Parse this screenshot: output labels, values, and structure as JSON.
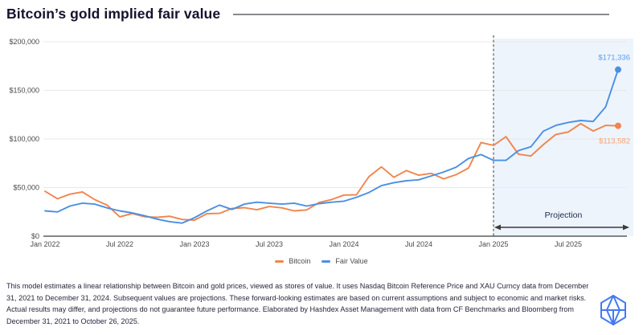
{
  "header": {
    "title": "Bitcoin’s gold implied fair value"
  },
  "chart_data": {
    "type": "line",
    "title": "Bitcoin’s gold implied fair value",
    "ylabel": "",
    "xlabel": "",
    "ylim": [
      0,
      200000
    ],
    "grid": "horizontal",
    "legend_position": "bottom-center",
    "x": [
      "Dec 2021",
      "Jan 2022",
      "Feb 2022",
      "Mar 2022",
      "Apr 2022",
      "May 2022",
      "Jun 2022",
      "Jul 2022",
      "Aug 2022",
      "Sep 2022",
      "Oct 2022",
      "Nov 2022",
      "Dec 2022",
      "Jan 2023",
      "Feb 2023",
      "Mar 2023",
      "Apr 2023",
      "May 2023",
      "Jun 2023",
      "Jul 2023",
      "Aug 2023",
      "Sep 2023",
      "Oct 2023",
      "Nov 2023",
      "Dec 2023",
      "Jan 2024",
      "Feb 2024",
      "Mar 2024",
      "Apr 2024",
      "May 2024",
      "Jun 2024",
      "Jul 2024",
      "Aug 2024",
      "Sep 2024",
      "Oct 2024",
      "Nov 2024",
      "Dec 2024",
      "Jan 2025",
      "Feb 2025",
      "Mar 2025",
      "Apr 2025",
      "May 2025",
      "Jun 2025",
      "Jul 2025",
      "Aug 2025",
      "Sep 2025",
      "Oct 26 2025"
    ],
    "series": [
      {
        "name": "Bitcoin",
        "color": "#f0854d",
        "label_color": "#f7a373",
        "end_label": "$113,582",
        "label_offset_y": 22,
        "values": [
          46200,
          38500,
          43200,
          45500,
          37600,
          31800,
          19900,
          23300,
          20000,
          19400,
          20500,
          17200,
          16500,
          23100,
          23500,
          28500,
          29300,
          27200,
          30500,
          29200,
          26000,
          27000,
          34600,
          37700,
          42300,
          42600,
          61200,
          71300,
          60600,
          67500,
          62700,
          64600,
          59000,
          63300,
          70200,
          96400,
          93400,
          102400,
          84400,
          82500,
          94200,
          104600,
          107200,
          115800,
          108200,
          114000,
          113582
        ]
      },
      {
        "name": "Fair Value",
        "color": "#4a90e2",
        "label_color": "#5c9df1",
        "end_label": "$171,336",
        "label_offset_y": -12,
        "values": [
          26000,
          25000,
          31000,
          34000,
          33000,
          29000,
          26000,
          24000,
          21000,
          17500,
          15000,
          13500,
          19000,
          26000,
          32000,
          27500,
          33000,
          35000,
          34000,
          33000,
          34000,
          31000,
          33500,
          35000,
          36000,
          40000,
          45000,
          52000,
          55000,
          57000,
          58000,
          62000,
          66000,
          71000,
          80000,
          84000,
          78000,
          78000,
          88000,
          92000,
          108000,
          114000,
          117000,
          119000,
          118000,
          133000,
          171336
        ]
      }
    ],
    "y_ticks": [
      {
        "label": "$0",
        "value": 0
      },
      {
        "label": "$50,000",
        "value": 50000
      },
      {
        "label": "$100,000",
        "value": 100000
      },
      {
        "label": "$150,000",
        "value": 150000
      },
      {
        "label": "$200,000",
        "value": 200000
      }
    ],
    "x_ticks": [
      {
        "label": "Jan 2022",
        "month_index": 0
      },
      {
        "label": "Jul 2022",
        "month_index": 6
      },
      {
        "label": "Jan 2023",
        "month_index": 12
      },
      {
        "label": "Jul 2023",
        "month_index": 18
      },
      {
        "label": "Jan 2024",
        "month_index": 24
      },
      {
        "label": "Jul 2024",
        "month_index": 30
      },
      {
        "label": "Jan 2025",
        "month_index": 36
      },
      {
        "label": "Jul 2025",
        "month_index": 42
      }
    ],
    "projection": {
      "label": "Projection",
      "starts_at": "Jan 2025",
      "start_month_index": 36,
      "band_color": "#edf4fc",
      "divider_color": "#4d4d4d",
      "arrow_color": "#3a3a3a"
    }
  },
  "footer": {
    "disclaimer": "This model estimates a linear relationship between Bitcoin and gold prices, viewed as stores of value. It uses Nasdaq Bitcoin Reference Price and XAU Curncy data from December 31, 2021 to December 31, 2024. Subsequent values are projections. These forward-looking estimates are based on current assumptions and subject to economic and market risks. Actual results may differ, and projections do not guarantee future performance. Elaborated by Hashdex Asset Management with data from CF Benchmarks and Bloomberg from December 31, 2021 to October 26, 2025.",
    "logo_name": "hashdex-logo",
    "logo_color": "#4379f2"
  }
}
